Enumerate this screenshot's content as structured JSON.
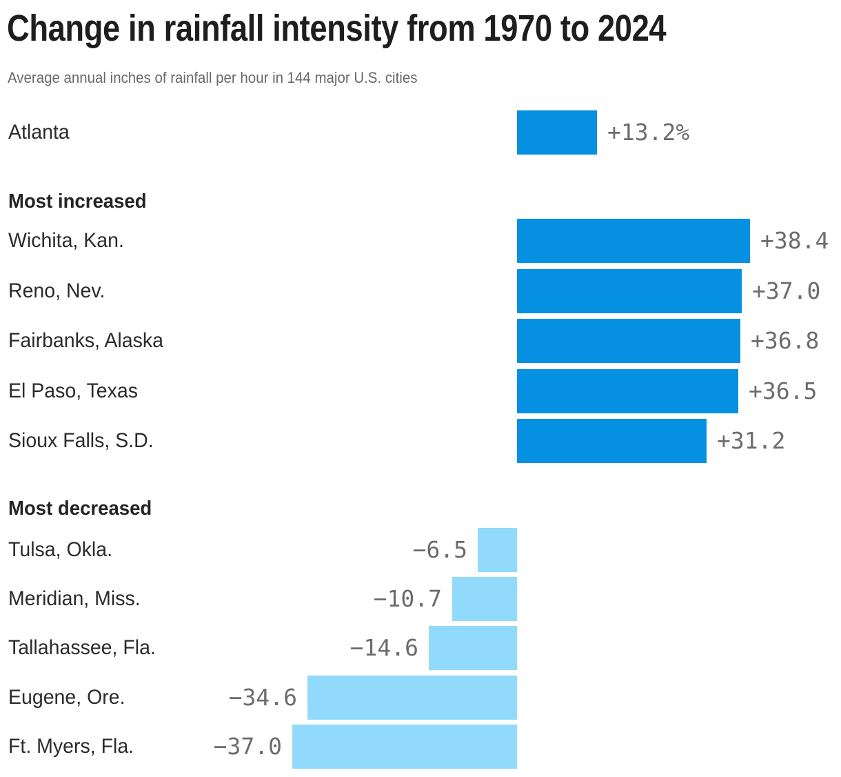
{
  "title": "Change in rainfall intensity from 1970 to 2024",
  "subtitle": "Average annual inches of rainfall per hour in 144 major U.S. cities",
  "colors": {
    "positive_bar": "#0590e2",
    "negative_bar": "#92dafb",
    "title_text": "#1e1e1e",
    "subtitle_text": "#696969",
    "label_text": "#2b2b2b",
    "value_text": "#6c6c6c"
  },
  "chart_data": {
    "type": "bar",
    "orientation": "horizontal",
    "value_unit": "percent change",
    "baseline": 0,
    "xlim": [
      -37.0,
      38.4
    ],
    "grid": false,
    "legend": false,
    "highlight_row": {
      "label": "Atlanta",
      "value": 13.2,
      "display": "+13.2%"
    },
    "sections": [
      {
        "heading": "Most increased",
        "direction": "positive",
        "rows": [
          {
            "label": "Wichita, Kan.",
            "value": 38.4,
            "display": "+38.4"
          },
          {
            "label": "Reno, Nev.",
            "value": 37.0,
            "display": "+37.0"
          },
          {
            "label": "Fairbanks, Alaska",
            "value": 36.8,
            "display": "+36.8"
          },
          {
            "label": "El Paso, Texas",
            "value": 36.5,
            "display": "+36.5"
          },
          {
            "label": "Sioux Falls, S.D.",
            "value": 31.2,
            "display": "+31.2"
          }
        ]
      },
      {
        "heading": "Most decreased",
        "direction": "negative",
        "rows": [
          {
            "label": "Tulsa, Okla.",
            "value": -6.5,
            "display": "−6.5"
          },
          {
            "label": "Meridian, Miss.",
            "value": -10.7,
            "display": "−10.7"
          },
          {
            "label": "Tallahassee, Fla.",
            "value": -14.6,
            "display": "−14.6"
          },
          {
            "label": "Eugene, Ore.",
            "value": -34.6,
            "display": "−34.6"
          },
          {
            "label": "Ft. Myers, Fla.",
            "value": -37.0,
            "display": "−37.0"
          }
        ]
      }
    ]
  }
}
